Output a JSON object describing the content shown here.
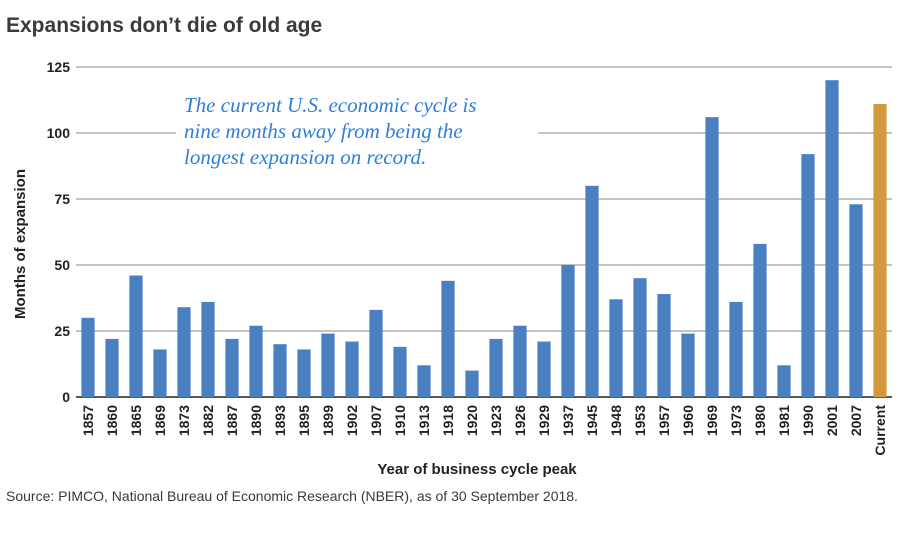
{
  "chart_data": {
    "type": "bar",
    "title": "Expansions don’t die of old age",
    "xlabel": "Year of business cycle peak",
    "ylabel": "Months of expansion",
    "ylim": [
      0,
      125
    ],
    "yticks": [
      0,
      25,
      50,
      75,
      100,
      125
    ],
    "grid": true,
    "categories": [
      "1857",
      "1860",
      "1865",
      "1869",
      "1873",
      "1882",
      "1887",
      "1890",
      "1893",
      "1895",
      "1899",
      "1902",
      "1907",
      "1910",
      "1913",
      "1918",
      "1920",
      "1923",
      "1926",
      "1929",
      "1937",
      "1945",
      "1948",
      "1953",
      "1957",
      "1960",
      "1969",
      "1973",
      "1980",
      "1981",
      "1990",
      "2001",
      "2007",
      "Current"
    ],
    "values": [
      30,
      22,
      46,
      18,
      34,
      36,
      22,
      27,
      20,
      18,
      24,
      21,
      33,
      19,
      12,
      44,
      10,
      22,
      27,
      21,
      50,
      80,
      37,
      45,
      39,
      24,
      106,
      36,
      58,
      12,
      92,
      120,
      73,
      111
    ],
    "highlight": [
      "Current"
    ],
    "annotation": [
      "The current U.S. economic cycle is",
      "nine months away from being the",
      "longest expansion on record."
    ],
    "source": "Source: PIMCO, National Bureau of Economic Research (NBER), as of 30 September 2018."
  },
  "colors": {
    "bar": "#4a7fc1",
    "highlight": "#d29a3c",
    "grid": "#8a8a8a",
    "annotation": "#2f7ed8"
  }
}
